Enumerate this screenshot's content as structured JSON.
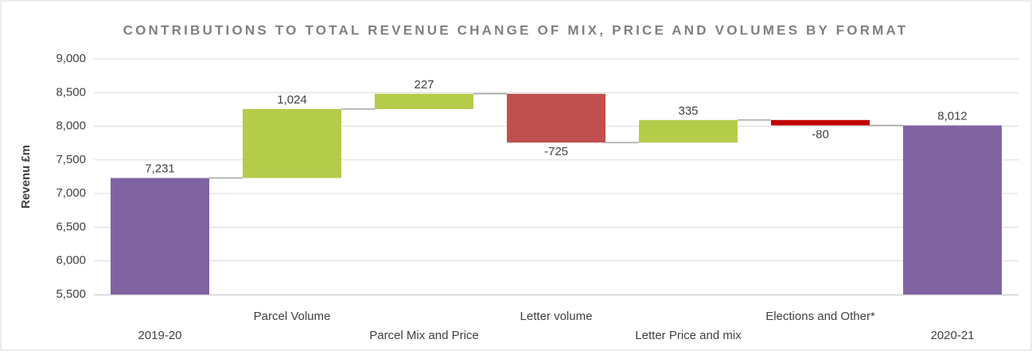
{
  "chart_data": {
    "type": "waterfall",
    "title": "CONTRIBUTIONS TO TOTAL REVENUE CHANGE OF MIX, PRICE AND VOLUMES BY FORMAT",
    "y_label": "Revenu £m",
    "categories": [
      "2019-20",
      "Parcel Volume",
      "Parcel Mix and Price",
      "Letter volume",
      "Letter Price and mix",
      "Elections and Other*",
      "2020-21"
    ],
    "values": [
      7231,
      1024,
      227,
      -725,
      335,
      -80,
      8012
    ],
    "value_labels": [
      "7,231",
      "1,024",
      "227",
      "-725",
      "335",
      "-80",
      "8,012"
    ],
    "colors": [
      "#8064a2",
      "#b5cc4b",
      "#b5cc4b",
      "#c0504d",
      "#b5cc4b",
      "#c00000",
      "#8064a2"
    ],
    "ylim": [
      5500,
      9000
    ],
    "yticks": [
      {
        "value": 5500,
        "label": "5,500"
      },
      {
        "value": 6000,
        "label": "6,000"
      },
      {
        "value": 6500,
        "label": "6,500"
      },
      {
        "value": 7000,
        "label": "7,000"
      },
      {
        "value": 7500,
        "label": "7,500"
      },
      {
        "value": 8000,
        "label": "8,000"
      },
      {
        "value": 8500,
        "label": "8,500"
      },
      {
        "value": 9000,
        "label": "9,000"
      }
    ],
    "grid": true
  }
}
